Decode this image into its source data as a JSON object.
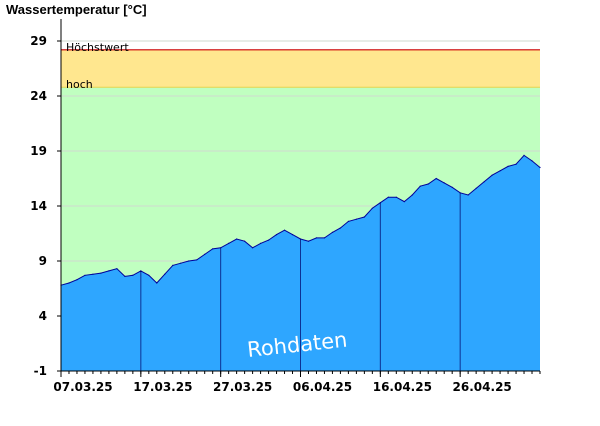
{
  "chart_data": {
    "type": "area",
    "title": "",
    "ylabel": "Wassertemperatur [°C]",
    "xlabel": "",
    "ylim": [
      -1,
      31
    ],
    "yticks": [
      -1,
      4,
      9,
      14,
      19,
      24,
      29
    ],
    "xlim_days": [
      0,
      60
    ],
    "xticks": [
      {
        "label": "07.03.25",
        "day": 0
      },
      {
        "label": "17.03.25",
        "day": 10
      },
      {
        "label": "27.03.25",
        "day": 20
      },
      {
        "label": "06.04.25",
        "day": 30
      },
      {
        "label": "16.04.25",
        "day": 40
      },
      {
        "label": "26.04.25",
        "day": 50
      }
    ],
    "bands": [
      {
        "label": "hoch",
        "from": 24.8,
        "to": 28.2,
        "color": "#ffe78f"
      },
      {
        "label": "",
        "from": -1,
        "to": 24.8,
        "color": "#c0ffc0"
      }
    ],
    "threshold_line": {
      "label": "Höchstwert",
      "value": 28.2,
      "color": "#cc0000"
    },
    "hoch_line_color": "#e8d44d",
    "series": [
      {
        "fill_color": "#2ea6ff",
        "line_color": "#000099",
        "x": [
          0,
          1,
          2,
          3,
          4,
          5,
          6,
          7,
          8,
          9,
          10,
          11,
          12,
          13,
          14,
          15,
          16,
          17,
          18,
          19,
          20,
          21,
          22,
          23,
          24,
          25,
          26,
          27,
          28,
          29,
          30,
          31,
          32,
          33,
          34,
          35,
          36,
          37,
          38,
          39,
          40,
          41,
          42,
          43,
          44,
          45,
          46,
          47,
          48,
          49,
          50,
          51,
          52,
          53,
          54,
          55,
          56,
          57,
          58,
          59,
          60
        ],
        "y": [
          6.8,
          7.0,
          7.3,
          7.7,
          7.8,
          7.9,
          8.1,
          8.3,
          7.6,
          7.7,
          8.1,
          7.7,
          7.0,
          7.8,
          8.6,
          8.8,
          9.0,
          9.1,
          9.6,
          10.1,
          10.2,
          10.6,
          11.0,
          10.8,
          10.2,
          10.6,
          10.9,
          11.4,
          11.8,
          11.4,
          11.0,
          10.8,
          11.1,
          11.1,
          11.6,
          12.0,
          12.6,
          12.8,
          13.0,
          13.8,
          14.3,
          14.8,
          14.8,
          14.4,
          15.0,
          15.8,
          16.0,
          16.5,
          16.1,
          15.7,
          15.2,
          15.0,
          15.6,
          16.2,
          16.8,
          17.2,
          17.6,
          17.8,
          18.6,
          18.1,
          17.5
        ]
      }
    ],
    "watermark": "Rohdaten"
  },
  "colors": {
    "grid": "#cfd8cf",
    "axis": "#000000",
    "day_lines": "#000066"
  }
}
